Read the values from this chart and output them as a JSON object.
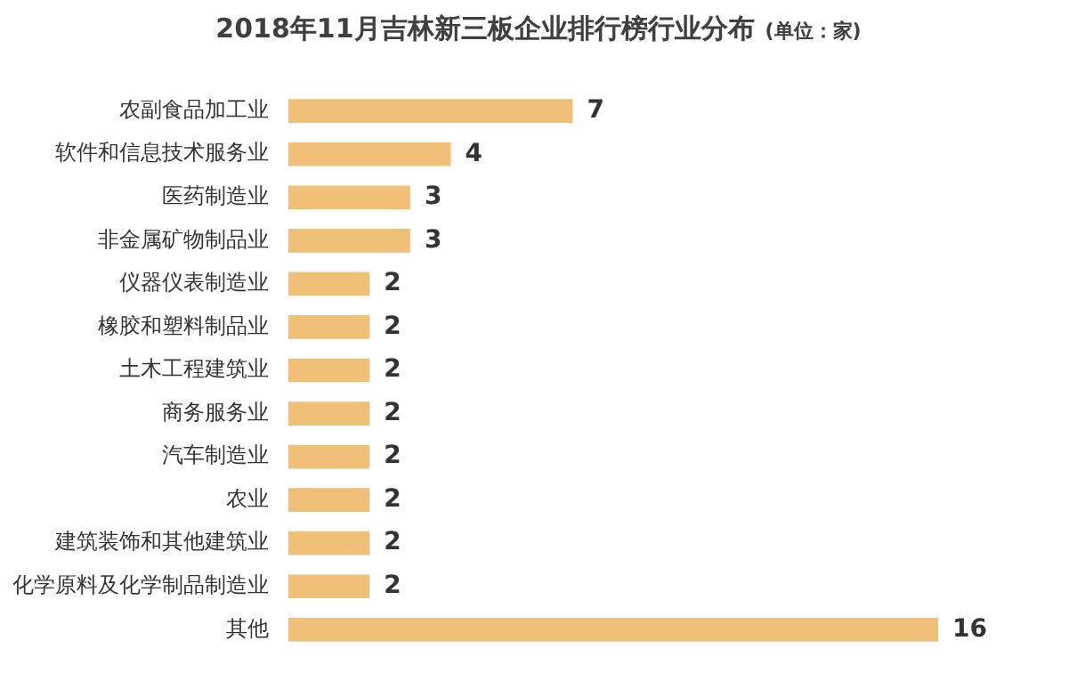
{
  "chart_data": {
    "type": "bar",
    "orientation": "horizontal",
    "title": "2018年11月吉林新三板企业排行榜行业分布",
    "subtitle": "(单位：家)",
    "categories": [
      "农副食品加工业",
      "软件和信息技术服务业",
      "医药制造业",
      "非金属矿物制品业",
      "仪器仪表制造业",
      "橡胶和塑料制品业",
      "土木工程建筑业",
      "商务服务业",
      "汽车制造业",
      "农业",
      "建筑装饰和其他建筑业",
      "化学原料及化学制品制造业",
      "其他"
    ],
    "values": [
      7,
      4,
      3,
      3,
      2,
      2,
      2,
      2,
      2,
      2,
      2,
      2,
      16
    ],
    "color": "#f0c078",
    "data_labels": true,
    "legend": false,
    "tick_labels": "y"
  }
}
